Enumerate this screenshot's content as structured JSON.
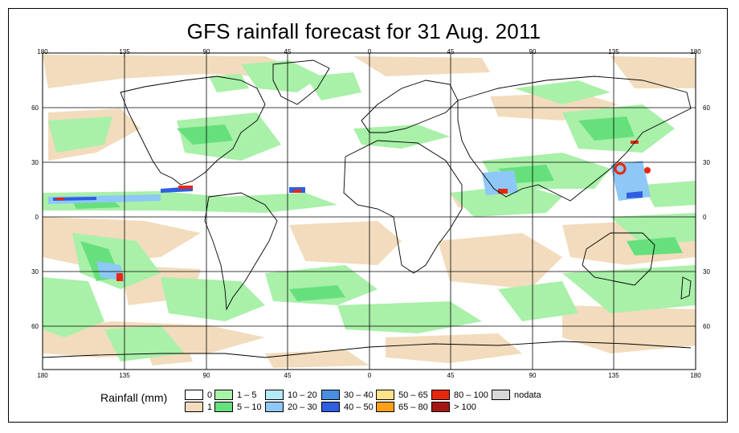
{
  "title": "GFS rainfall forecast for 31 Aug. 2011",
  "lon_labels": [
    "180",
    "135",
    "90",
    "45",
    "0",
    "45",
    "90",
    "135",
    "180"
  ],
  "lat_labels_left": [
    "60",
    "30",
    "0",
    "30",
    "60"
  ],
  "lat_labels_right": [
    "60",
    "30",
    "0",
    "30",
    "60"
  ],
  "legend": {
    "title": "Rainfall (mm)",
    "items": [
      {
        "label": "0",
        "color": "#ffffff"
      },
      {
        "label": "1",
        "color": "#f2dcbd"
      },
      {
        "label": "1 – 5",
        "color": "#a9f0a9"
      },
      {
        "label": "5 – 10",
        "color": "#66e07c"
      },
      {
        "label": "10 – 20",
        "color": "#b4eaf6"
      },
      {
        "label": "20 – 30",
        "color": "#8ec8f6"
      },
      {
        "label": "30 – 40",
        "color": "#4a8ee0"
      },
      {
        "label": "40 – 50",
        "color": "#2e5fe0"
      },
      {
        "label": "50 – 65",
        "color": "#ffe38a"
      },
      {
        "label": "65 – 80",
        "color": "#ffa019"
      },
      {
        "label": "80 – 100",
        "color": "#e8280e"
      },
      {
        "label": "> 100",
        "color": "#a41616"
      },
      {
        "label": "nodata",
        "color": "#d8d8d8"
      }
    ]
  }
}
